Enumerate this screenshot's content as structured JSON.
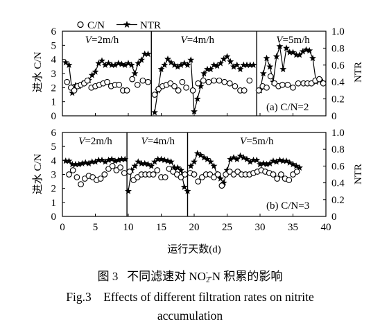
{
  "legend": {
    "cn_label": "C/N",
    "ntr_label": "NTR"
  },
  "caption": {
    "cn_prefix": "图 3",
    "cn_title_before": "不同滤速对 NO",
    "cn_title_sub": "2",
    "cn_title_sup": "-",
    "cn_title_after": "-N 积累的影响",
    "en_line1": "Fig.3    Effects of different filtration rates on nitrite",
    "en_line2": "accumulation"
  },
  "chart_data": [
    {
      "type": "line",
      "panel_label": "(a) C/N=2",
      "ylabel_left": "进水 C/N",
      "ylabel_right": "NTR",
      "ylim_left": [
        0,
        6
      ],
      "ylim_right": [
        0,
        1.0
      ],
      "yticks_left": [
        "0",
        "1",
        "2",
        "3",
        "4",
        "5",
        "6"
      ],
      "yticks_right": [
        "0",
        "0.2",
        "0.4",
        "0.6",
        "0.8",
        "1.0"
      ],
      "xlim": [
        0,
        40
      ],
      "stage_dividers": [
        13.5,
        29.5
      ],
      "stages": [
        {
          "label": "V",
          "suffix": "=2m/h",
          "x": 6
        },
        {
          "label": "V",
          "suffix": "=4m/h",
          "x": 20.5
        },
        {
          "label": "V",
          "suffix": "=5m/h",
          "x": 35
        }
      ],
      "series": [
        {
          "name": "C/N",
          "marker": "circle",
          "x": [
            0.7,
            1.3,
            1.8,
            2.3,
            2.8,
            3.3,
            3.8,
            4.4,
            5.0,
            5.6,
            6.2,
            6.8,
            7.4,
            8.0,
            8.6,
            9.2,
            9.8,
            10.6,
            11.4,
            12.2,
            13.0,
            14.0,
            14.6,
            15.2,
            15.8,
            16.4,
            17.0,
            17.6,
            18.2,
            18.8,
            19.8,
            20.6,
            21.4,
            22.2,
            23.0,
            23.8,
            24.6,
            25.4,
            26.2,
            27.0,
            27.6,
            28.4,
            29.8,
            30.4,
            31.0,
            31.6,
            32.2,
            32.8,
            33.4,
            34.2,
            35.0,
            35.8,
            36.6,
            37.2,
            37.8,
            38.4,
            39.0,
            39.6
          ],
          "values": [
            2.4,
            2.0,
            1.8,
            2.1,
            2.2,
            2.3,
            2.5,
            2.0,
            2.1,
            2.2,
            2.3,
            2.4,
            2.1,
            2.2,
            2.2,
            1.8,
            1.8,
            2.6,
            2.2,
            2.5,
            2.4,
            1.5,
            1.9,
            2.1,
            2.2,
            2.3,
            2.1,
            1.8,
            2.4,
            2.0,
            1.8,
            2.3,
            2.5,
            2.4,
            2.5,
            2.5,
            2.4,
            2.3,
            2.1,
            1.8,
            1.8,
            2.5,
            1.8,
            2.1,
            2.0,
            2.8,
            2.3,
            2.1,
            2.2,
            2.2,
            2.0,
            2.3,
            2.3,
            2.3,
            2.3,
            2.5,
            2.6,
            2.3
          ]
        },
        {
          "name": "NTR",
          "marker": "star",
          "x": [
            0.5,
            1.0,
            1.5,
            2.0,
            2.5,
            3.0,
            3.5,
            4.0,
            4.5,
            5.0,
            5.5,
            6.0,
            6.5,
            7.0,
            7.5,
            8.0,
            8.5,
            9.0,
            9.5,
            10.0,
            10.5,
            11.0,
            11.5,
            12.0,
            12.5,
            13.0,
            14.0,
            14.5,
            15.0,
            15.5,
            16.0,
            16.5,
            17.0,
            17.5,
            18.0,
            18.5,
            19.0,
            19.5,
            20.0,
            20.5,
            21.0,
            21.5,
            22.0,
            22.5,
            23.0,
            23.5,
            24.0,
            24.5,
            25.0,
            25.5,
            26.0,
            26.5,
            27.0,
            27.5,
            28.0,
            28.5,
            29.0,
            30.0,
            30.5,
            31.0,
            31.5,
            32.0,
            32.5,
            33.0,
            33.5,
            34.0,
            34.5,
            35.0,
            35.5,
            36.0,
            36.5,
            37.0,
            37.5,
            38.0,
            38.5,
            39.0,
            39.5
          ],
          "values": [
            0.63,
            0.6,
            0.27,
            0.36,
            0.35,
            0.38,
            0.4,
            0.42,
            0.48,
            0.52,
            0.62,
            0.65,
            0.6,
            0.62,
            0.6,
            0.6,
            0.62,
            0.61,
            0.6,
            0.62,
            0.6,
            0.5,
            0.62,
            0.66,
            0.73,
            0.73,
            0.04,
            0.3,
            0.55,
            0.6,
            0.67,
            0.63,
            0.6,
            0.58,
            0.6,
            0.62,
            0.6,
            0.66,
            0.05,
            0.2,
            0.35,
            0.5,
            0.55,
            0.55,
            0.6,
            0.59,
            0.62,
            0.67,
            0.7,
            0.64,
            0.58,
            0.6,
            0.55,
            0.6,
            0.6,
            0.6,
            0.6,
            0.3,
            0.5,
            0.68,
            0.58,
            0.4,
            0.7,
            0.82,
            0.55,
            0.8,
            0.75,
            0.75,
            0.72,
            0.72,
            0.76,
            0.78,
            0.77,
            0.68,
            0.4,
            0.42,
            0.4
          ]
        }
      ]
    },
    {
      "type": "line",
      "panel_label": "(b) C/N=3",
      "ylabel_left": "进水 C/N",
      "ylabel_right": "NTR",
      "xlabel": "运行天数(d)",
      "ylim_left": [
        0,
        6
      ],
      "ylim_right": [
        0,
        1.0
      ],
      "yticks_left": [
        "0",
        "1",
        "2",
        "3",
        "4",
        "5",
        "6"
      ],
      "yticks_right": [
        "0",
        "0.2",
        "0.4",
        "0.6",
        "0.8",
        "1.0"
      ],
      "xlim": [
        0,
        40
      ],
      "xticks": [
        "0",
        "5",
        "10",
        "15",
        "20",
        "25",
        "30",
        "35",
        "40"
      ],
      "stage_dividers": [
        9.8,
        19.0
      ],
      "stages": [
        {
          "label": "V",
          "suffix": "=2m/h",
          "x": 5
        },
        {
          "label": "V",
          "suffix": "=4m/h",
          "x": 14.5
        },
        {
          "label": "V",
          "suffix": "=5m/h",
          "x": 29.5
        }
      ],
      "series": [
        {
          "name": "C/N",
          "marker": "circle",
          "x": [
            1.0,
            1.6,
            2.2,
            2.8,
            3.4,
            4.0,
            4.6,
            5.2,
            5.8,
            6.4,
            7.0,
            7.6,
            8.2,
            8.8,
            9.4,
            10.2,
            10.8,
            11.4,
            12.0,
            12.6,
            13.2,
            13.8,
            14.4,
            15.0,
            15.6,
            16.2,
            16.8,
            17.4,
            18.0,
            18.6,
            19.4,
            20.0,
            20.6,
            21.2,
            21.8,
            22.4,
            23.0,
            23.6,
            24.2,
            24.8,
            25.4,
            26.0,
            26.6,
            27.2,
            27.8,
            28.4,
            29.0,
            29.6,
            30.2,
            30.8,
            31.4,
            32.0,
            32.6,
            33.2,
            33.8,
            34.4,
            35.0,
            35.6
          ],
          "values": [
            3.0,
            3.3,
            2.8,
            2.3,
            2.7,
            2.9,
            2.8,
            2.6,
            2.7,
            3.0,
            3.4,
            3.6,
            3.3,
            3.5,
            3.1,
            3.2,
            2.6,
            2.8,
            3.0,
            3.0,
            3.0,
            3.0,
            3.3,
            2.8,
            2.8,
            3.4,
            3.2,
            3.0,
            2.8,
            3.0,
            3.1,
            3.0,
            2.5,
            2.8,
            3.0,
            3.0,
            2.8,
            3.0,
            2.2,
            3.0,
            3.2,
            3.0,
            3.2,
            3.0,
            3.0,
            3.0,
            3.1,
            3.2,
            3.3,
            3.2,
            3.1,
            3.0,
            2.7,
            3.0,
            2.7,
            2.6,
            3.0,
            3.2
          ]
        },
        {
          "name": "NTR",
          "marker": "star",
          "x": [
            0.5,
            1.0,
            1.5,
            2.0,
            2.5,
            3.0,
            3.5,
            4.0,
            4.5,
            5.0,
            5.5,
            6.0,
            6.5,
            7.0,
            7.5,
            8.0,
            8.5,
            9.0,
            9.5,
            10.0,
            10.5,
            11.0,
            11.5,
            12.0,
            12.5,
            13.0,
            13.5,
            14.0,
            14.5,
            15.0,
            15.5,
            16.0,
            16.5,
            17.0,
            17.5,
            18.0,
            18.5,
            19.0,
            19.5,
            20.0,
            20.5,
            21.0,
            21.5,
            22.0,
            22.5,
            23.0,
            23.5,
            24.0,
            24.5,
            25.0,
            25.5,
            26.0,
            26.5,
            27.0,
            27.5,
            28.0,
            28.5,
            29.0,
            29.5,
            30.0,
            30.5,
            31.0,
            31.5,
            32.0,
            32.5,
            33.0,
            33.5,
            34.0,
            34.5,
            35.0,
            35.5,
            36.0
          ],
          "values": [
            0.66,
            0.66,
            0.62,
            0.62,
            0.62,
            0.63,
            0.64,
            0.63,
            0.65,
            0.65,
            0.67,
            0.67,
            0.65,
            0.67,
            0.68,
            0.66,
            0.67,
            0.68,
            0.68,
            0.3,
            0.55,
            0.6,
            0.65,
            0.63,
            0.63,
            0.62,
            0.6,
            0.65,
            0.68,
            0.68,
            0.67,
            0.66,
            0.65,
            0.58,
            0.58,
            0.55,
            0.35,
            0.3,
            0.6,
            0.65,
            0.75,
            0.73,
            0.7,
            0.68,
            0.65,
            0.6,
            0.5,
            0.45,
            0.4,
            0.55,
            0.68,
            0.7,
            0.68,
            0.72,
            0.7,
            0.68,
            0.65,
            0.67,
            0.67,
            0.62,
            0.63,
            0.62,
            0.63,
            0.66,
            0.65,
            0.67,
            0.66,
            0.66,
            0.64,
            0.62,
            0.6,
            0.58
          ]
        }
      ]
    }
  ]
}
